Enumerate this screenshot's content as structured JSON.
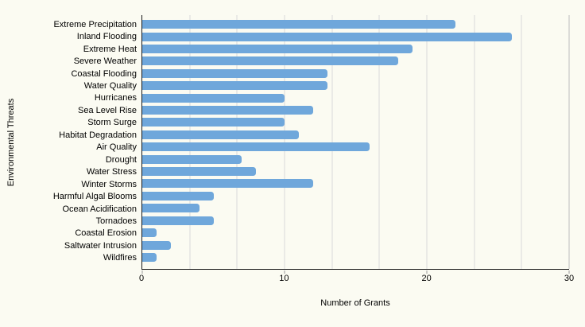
{
  "figure": {
    "background_color": "#fbfbf2",
    "bar_color": "#6fa7db",
    "gridline_color": "#dadada",
    "axis_line_color": "#1a1a1a"
  },
  "chart_data": {
    "type": "bar",
    "orientation": "horizontal",
    "title": "",
    "xlabel": "Number of Grants",
    "ylabel": "Environmental Threats",
    "xlim": [
      0,
      30
    ],
    "xticks": [
      0,
      10,
      20,
      30
    ],
    "x_tick_labels": [
      "0",
      "10",
      "20",
      "30"
    ],
    "gridline_interval": 3.3333,
    "grid": "vertical",
    "legend": "none",
    "categories": [
      "Extreme Precipitation",
      "Inland Flooding",
      "Extreme Heat",
      "Severe Weather",
      "Coastal Flooding",
      "Water Quality",
      "Hurricanes",
      "Sea Level Rise",
      "Storm Surge",
      "Habitat Degradation",
      "Air Quality",
      "Drought",
      "Water Stress",
      "Winter Storms",
      "Harmful Algal Blooms",
      "Ocean Acidification",
      "Tornadoes",
      "Coastal Erosion",
      "Saltwater Intrusion",
      "Wildfires"
    ],
    "values": [
      22,
      26,
      19,
      18,
      13,
      13,
      10,
      12,
      10,
      11,
      16,
      7,
      8,
      12,
      5,
      4,
      5,
      1,
      2,
      1
    ]
  }
}
